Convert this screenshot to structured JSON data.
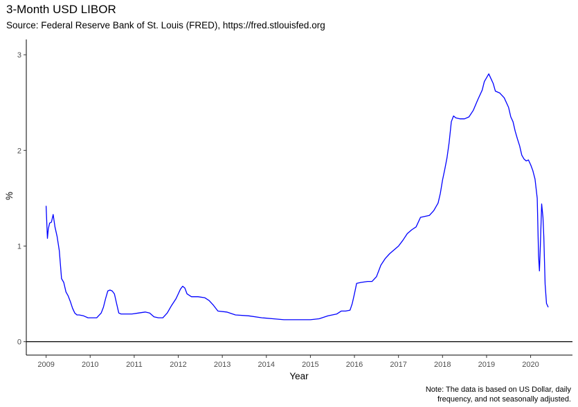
{
  "chart_data": {
    "type": "line",
    "title": "3-Month USD LIBOR",
    "subtitle": "Source: Federal Reserve Bank of St. Louis (FRED), https://fred.stlouisfed.org",
    "caption": "Note: The data is based on US Dollar, daily\nfrequency, and not seasonally adjusted.",
    "xlabel": "Year",
    "ylabel": "%",
    "x_ticks": [
      "2009",
      "2010",
      "2011",
      "2012",
      "2013",
      "2014",
      "2015",
      "2016",
      "2017",
      "2018",
      "2019",
      "2020"
    ],
    "y_ticks": [
      0,
      1,
      2,
      3
    ],
    "xlim": [
      2008.55,
      2020.95
    ],
    "ylim": [
      -0.14,
      3.16
    ],
    "grid": false,
    "reference_line_y": 0,
    "series": [
      {
        "color": "#0000ff",
        "x": [
          2009.0,
          2009.03,
          2009.05,
          2009.08,
          2009.12,
          2009.16,
          2009.2,
          2009.25,
          2009.3,
          2009.35,
          2009.4,
          2009.45,
          2009.5,
          2009.55,
          2009.6,
          2009.65,
          2009.7,
          2009.75,
          2009.85,
          2009.95,
          2010.05,
          2010.15,
          2010.25,
          2010.3,
          2010.35,
          2010.4,
          2010.45,
          2010.5,
          2010.55,
          2010.6,
          2010.65,
          2010.7,
          2010.8,
          2010.95,
          2011.1,
          2011.25,
          2011.35,
          2011.45,
          2011.55,
          2011.65,
          2011.75,
          2011.85,
          2011.95,
          2012.0,
          2012.05,
          2012.1,
          2012.15,
          2012.2,
          2012.3,
          2012.45,
          2012.6,
          2012.7,
          2012.8,
          2012.9,
          2013.1,
          2013.3,
          2013.6,
          2013.9,
          2014.15,
          2014.4,
          2014.7,
          2014.9,
          2015.0,
          2015.2,
          2015.4,
          2015.6,
          2015.7,
          2015.8,
          2015.9,
          2015.95,
          2016.0,
          2016.05,
          2016.15,
          2016.3,
          2016.4,
          2016.5,
          2016.6,
          2016.7,
          2016.8,
          2016.9,
          2017.0,
          2017.1,
          2017.2,
          2017.3,
          2017.4,
          2017.5,
          2017.6,
          2017.7,
          2017.8,
          2017.9,
          2017.95,
          2018.0,
          2018.05,
          2018.1,
          2018.15,
          2018.2,
          2018.25,
          2018.3,
          2018.4,
          2018.5,
          2018.6,
          2018.7,
          2018.8,
          2018.9,
          2018.95,
          2019.0,
          2019.05,
          2019.1,
          2019.15,
          2019.2,
          2019.3,
          2019.4,
          2019.5,
          2019.55,
          2019.6,
          2019.65,
          2019.7,
          2019.75,
          2019.8,
          2019.85,
          2019.9,
          2019.95,
          2020.0,
          2020.05,
          2020.1,
          2020.15,
          2020.18,
          2020.2,
          2020.22,
          2020.25,
          2020.28,
          2020.3,
          2020.33,
          2020.36,
          2020.4
        ],
        "y": [
          1.42,
          1.08,
          1.18,
          1.24,
          1.25,
          1.33,
          1.2,
          1.1,
          0.95,
          0.66,
          0.62,
          0.52,
          0.48,
          0.42,
          0.35,
          0.3,
          0.28,
          0.28,
          0.27,
          0.25,
          0.25,
          0.25,
          0.3,
          0.36,
          0.45,
          0.53,
          0.54,
          0.53,
          0.5,
          0.4,
          0.3,
          0.29,
          0.29,
          0.29,
          0.3,
          0.31,
          0.3,
          0.26,
          0.25,
          0.25,
          0.3,
          0.38,
          0.45,
          0.5,
          0.55,
          0.58,
          0.56,
          0.5,
          0.47,
          0.47,
          0.46,
          0.43,
          0.38,
          0.32,
          0.31,
          0.28,
          0.27,
          0.25,
          0.24,
          0.23,
          0.23,
          0.23,
          0.23,
          0.24,
          0.27,
          0.29,
          0.32,
          0.32,
          0.33,
          0.4,
          0.5,
          0.61,
          0.62,
          0.63,
          0.63,
          0.68,
          0.8,
          0.87,
          0.92,
          0.96,
          1.0,
          1.06,
          1.13,
          1.17,
          1.2,
          1.3,
          1.31,
          1.32,
          1.37,
          1.45,
          1.55,
          1.69,
          1.8,
          1.92,
          2.08,
          2.3,
          2.36,
          2.34,
          2.33,
          2.33,
          2.35,
          2.42,
          2.53,
          2.63,
          2.72,
          2.76,
          2.8,
          2.75,
          2.7,
          2.62,
          2.6,
          2.55,
          2.45,
          2.35,
          2.3,
          2.2,
          2.12,
          2.05,
          1.95,
          1.91,
          1.89,
          1.9,
          1.85,
          1.79,
          1.7,
          1.5,
          0.9,
          0.74,
          1.0,
          1.44,
          1.3,
          1.1,
          0.6,
          0.4,
          0.36
        ]
      }
    ]
  }
}
